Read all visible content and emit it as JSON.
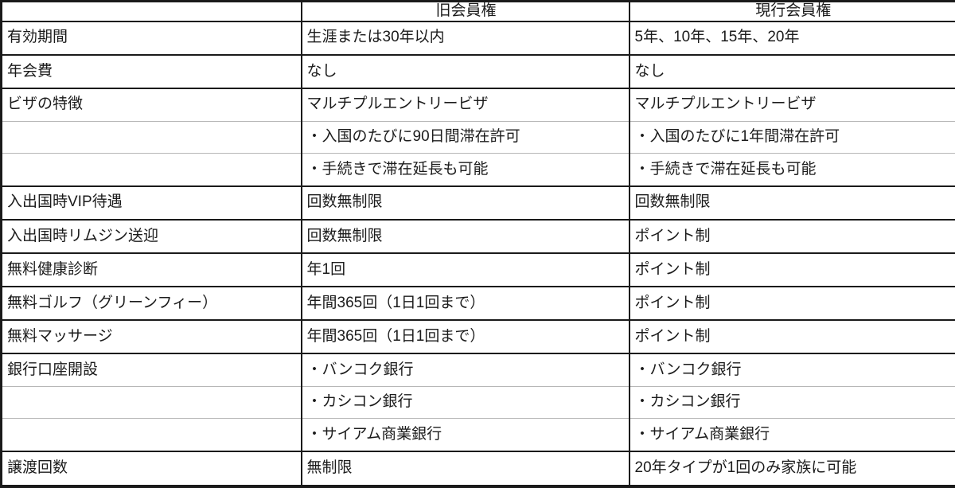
{
  "table": {
    "columns": [
      "",
      "旧会員権",
      "現行会員権"
    ],
    "rows": [
      {
        "label": "有効期間",
        "old": [
          "生涯または30年以内"
        ],
        "current": [
          "5年、10年、15年、20年"
        ]
      },
      {
        "label": "年会費",
        "old": [
          "なし"
        ],
        "current": [
          "なし"
        ]
      },
      {
        "label": "ビザの特徴",
        "old": [
          "マルチプルエントリービザ",
          "・入国のたびに90日間滞在許可",
          "・手続きで滞在延長も可能"
        ],
        "current": [
          "マルチプルエントリービザ",
          "・入国のたびに1年間滞在許可",
          "・手続きで滞在延長も可能"
        ]
      },
      {
        "label": "入出国時VIP待遇",
        "old": [
          "回数無制限"
        ],
        "current": [
          "回数無制限"
        ]
      },
      {
        "label": "入出国時リムジン送迎",
        "old": [
          "回数無制限"
        ],
        "current": [
          "ポイント制"
        ]
      },
      {
        "label": "無料健康診断",
        "old": [
          "年1回"
        ],
        "current": [
          "ポイント制"
        ]
      },
      {
        "label": "無料ゴルフ（グリーンフィー）",
        "old": [
          "年間365回（1日1回まで）"
        ],
        "current": [
          "ポイント制"
        ]
      },
      {
        "label": "無料マッサージ",
        "old": [
          "年間365回（1日1回まで）"
        ],
        "current": [
          "ポイント制"
        ]
      },
      {
        "label": "銀行口座開設",
        "old": [
          "・バンコク銀行",
          "・カシコン銀行",
          "・サイアム商業銀行"
        ],
        "current": [
          "・バンコク銀行",
          "・カシコン銀行",
          "・サイアム商業銀行"
        ]
      },
      {
        "label": "譲渡回数",
        "old": [
          "無制限"
        ],
        "current": [
          "20年タイプが1回のみ家族に可能"
        ]
      }
    ],
    "colors": {
      "border_black": "#1a1a1a",
      "border_gray": "#b7b7b7",
      "text": "#1b1b1b",
      "background": "#ffffff"
    }
  }
}
